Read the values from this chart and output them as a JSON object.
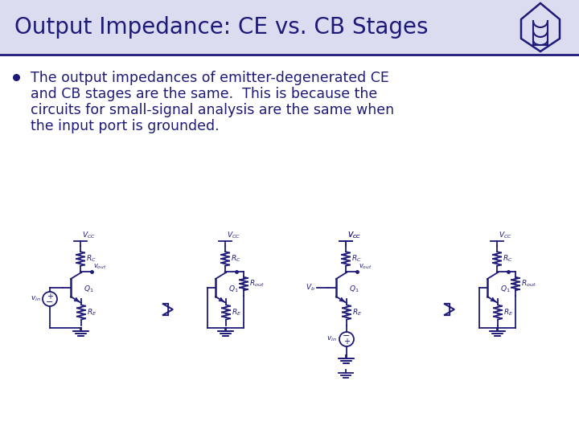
{
  "title": "Output Impedance: CE vs. CB Stages",
  "title_color": "#1E1A78",
  "title_fontsize": 20,
  "title_bg_color": "#DCDCF0",
  "bg_color": "#FFFFFF",
  "bullet_color": "#1E1A78",
  "bullet_text_lines": [
    "The output impedances of emitter-degenerated CE",
    "and CB stages are the same.  This is because the",
    "circuits for small-signal analysis are the same when",
    "the input port is grounded."
  ],
  "bullet_text_fontsize": 12.5,
  "circuit_color": "#1E1A78",
  "divider_color": "#1E1A78",
  "logo_color": "#1E1A78"
}
